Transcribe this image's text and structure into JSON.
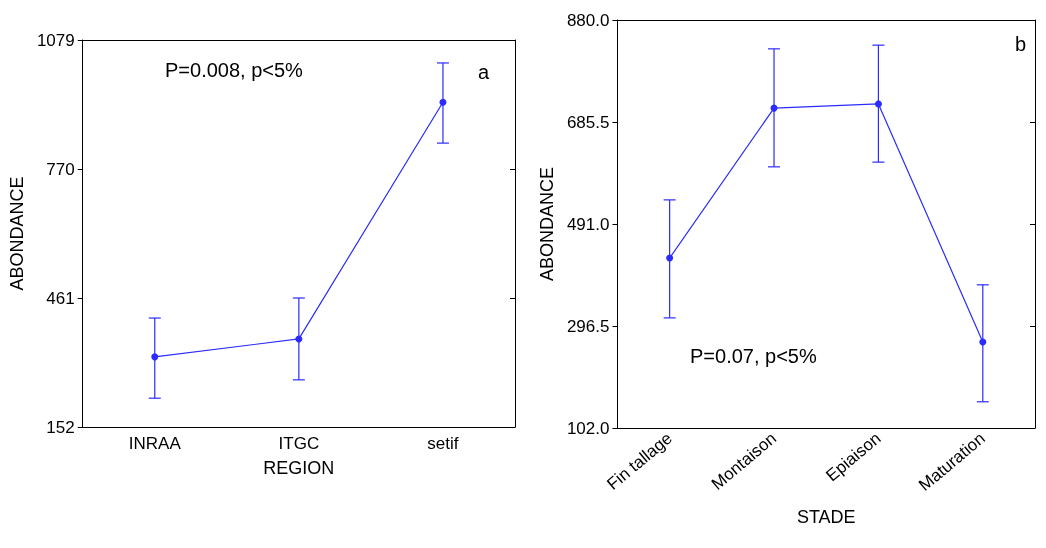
{
  "chart_data": [
    {
      "type": "line",
      "xlabel": "REGION",
      "ylabel": "ABONDANCE",
      "categories": [
        "INRAA",
        "ITGC",
        "setif"
      ],
      "series": [
        {
          "color": "#2b2bff",
          "values": [
            320,
            363,
            930
          ],
          "errors": [
            [
              221,
              413
            ],
            [
              265,
              461
            ],
            [
              832,
              1024
            ]
          ]
        }
      ],
      "ylim": [
        152,
        1079
      ],
      "yticks": [
        152,
        461,
        770,
        1079
      ],
      "grid": false,
      "marker": "circle",
      "line_style": "solid",
      "annotations": [
        "P=0.008, p<5%",
        "a"
      ]
    },
    {
      "type": "line",
      "xlabel": "STADE",
      "ylabel": "ABONDANCE",
      "categories": [
        "Fin tallage",
        "Montaison",
        "Epiaison",
        "Maturation"
      ],
      "series": [
        {
          "color": "#2b2bff",
          "values": [
            426,
            712,
            720,
            266
          ],
          "errors": [
            [
              312,
              537
            ],
            [
              600,
              825
            ],
            [
              609,
              832
            ],
            [
              152,
              375
            ]
          ]
        }
      ],
      "ylim": [
        102,
        880
      ],
      "yticks": [
        {
          "value": 102,
          "label": "102.0"
        },
        {
          "value": 296.5,
          "label": "296.5"
        },
        {
          "value": 491,
          "label": "491.0"
        },
        {
          "value": 685.5,
          "label": "685.5"
        },
        {
          "value": 880,
          "label": "880.0"
        }
      ],
      "grid": false,
      "marker": "circle",
      "line_style": "solid",
      "annotations": [
        "P=0.07, p<5%",
        "b"
      ]
    }
  ]
}
